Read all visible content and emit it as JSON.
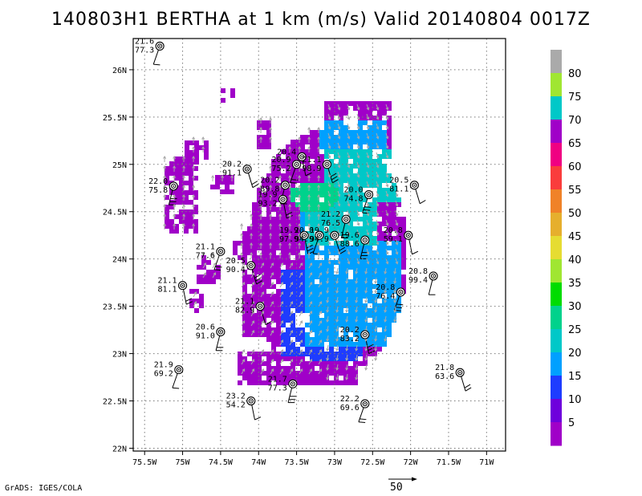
{
  "title": "140803H1 BERTHA at 1 km (m/s) Valid 20140804 0017Z",
  "credit": "GrADS: IGES/COLA",
  "reference_vector_label": "50",
  "chart_data": {
    "type": "heatmap",
    "title": "140803H1 BERTHA at 1 km (m/s) Valid 20140804 0017Z",
    "xlabel": "",
    "ylabel": "",
    "xlim": [
      -75.65,
      -70.75
    ],
    "ylim": [
      21.97,
      26.33
    ],
    "grid": true,
    "x_ticks": [
      {
        "value": -75.5,
        "label": "75.5W"
      },
      {
        "value": -75,
        "label": "75W"
      },
      {
        "value": -74.5,
        "label": "74.5W"
      },
      {
        "value": -74,
        "label": "74W"
      },
      {
        "value": -73.5,
        "label": "73.5W"
      },
      {
        "value": -73,
        "label": "73W"
      },
      {
        "value": -72.5,
        "label": "72.5W"
      },
      {
        "value": -72,
        "label": "72W"
      },
      {
        "value": -71.5,
        "label": "71.5W"
      },
      {
        "value": -71,
        "label": "71W"
      }
    ],
    "y_ticks": [
      {
        "value": 22,
        "label": "22N"
      },
      {
        "value": 22.5,
        "label": "22.5N"
      },
      {
        "value": 23,
        "label": "23N"
      },
      {
        "value": 23.5,
        "label": "23.5N"
      },
      {
        "value": 24,
        "label": "24N"
      },
      {
        "value": 24.5,
        "label": "24.5N"
      },
      {
        "value": 25,
        "label": "25N"
      },
      {
        "value": 25.5,
        "label": "25.5N"
      },
      {
        "value": 26,
        "label": "26N"
      }
    ],
    "colorbar": {
      "labels": [
        "5",
        "10",
        "15",
        "20",
        "25",
        "30",
        "35",
        "40",
        "45",
        "50",
        "55",
        "60",
        "65",
        "70",
        "75",
        "80"
      ],
      "colors": [
        "#a000c8",
        "#6e00dc",
        "#1e3cff",
        "#00a0ff",
        "#00c8c8",
        "#00d28c",
        "#00dc00",
        "#a0e632",
        "#e6dc32",
        "#e6af2d",
        "#f08228",
        "#fa3c3c",
        "#f00082",
        "#a000c8",
        "#00c8c8",
        "#a0e632",
        "#aaaaaa"
      ]
    },
    "observations": [
      {
        "lon": -75.3,
        "lat": 26.25,
        "temp": "21.6",
        "rh": "77.3"
      },
      {
        "lon": -74.15,
        "lat": 24.95,
        "temp": "20.2",
        "rh": "91.1"
      },
      {
        "lon": -75.12,
        "lat": 24.77,
        "temp": "22.0",
        "rh": "75.8"
      },
      {
        "lon": -73.43,
        "lat": 25.08,
        "temp": "20.4",
        "rh": ""
      },
      {
        "lon": -73.5,
        "lat": 25.0,
        "temp": "20.9",
        "rh": "75.2"
      },
      {
        "lon": -73.1,
        "lat": 25.0,
        "temp": "21.1",
        "rh": "98.9"
      },
      {
        "lon": -73.65,
        "lat": 24.78,
        "temp": "20.2",
        "rh": "89.8"
      },
      {
        "lon": -73.68,
        "lat": 24.63,
        "temp": "19.9",
        "rh": "93.2"
      },
      {
        "lon": -72.55,
        "lat": 24.68,
        "temp": "20.0",
        "rh": "74.8"
      },
      {
        "lon": -71.95,
        "lat": 24.78,
        "temp": "20.5",
        "rh": "81.1"
      },
      {
        "lon": -72.85,
        "lat": 24.42,
        "temp": "21.2",
        "rh": "76.5"
      },
      {
        "lon": -73.4,
        "lat": 24.25,
        "temp": "19.9",
        "rh": "97.9"
      },
      {
        "lon": -73.2,
        "lat": 24.25,
        "temp": "20.0",
        "rh": "94.9"
      },
      {
        "lon": -73.0,
        "lat": 24.25,
        "temp": "19.9",
        "rh": "94.9"
      },
      {
        "lon": -72.6,
        "lat": 24.2,
        "temp": "19.6",
        "rh": "88.6"
      },
      {
        "lon": -72.03,
        "lat": 24.25,
        "temp": "20.8",
        "rh": "59.1"
      },
      {
        "lon": -74.5,
        "lat": 24.08,
        "temp": "21.1",
        "rh": "77.6"
      },
      {
        "lon": -74.1,
        "lat": 23.93,
        "temp": "20.5",
        "rh": "90.4"
      },
      {
        "lon": -71.7,
        "lat": 23.82,
        "temp": "20.8",
        "rh": "99.4"
      },
      {
        "lon": -75.0,
        "lat": 23.72,
        "temp": "21.1",
        "rh": "81.1"
      },
      {
        "lon": -72.13,
        "lat": 23.65,
        "temp": "20.8",
        "rh": "76.4"
      },
      {
        "lon": -73.98,
        "lat": 23.5,
        "temp": "21.1",
        "rh": "82.9"
      },
      {
        "lon": -74.5,
        "lat": 23.23,
        "temp": "20.6",
        "rh": "91.0"
      },
      {
        "lon": -72.6,
        "lat": 23.2,
        "temp": "20.2",
        "rh": "83.2"
      },
      {
        "lon": -75.05,
        "lat": 22.83,
        "temp": "21.9",
        "rh": "69.2"
      },
      {
        "lon": -71.35,
        "lat": 22.8,
        "temp": "21.8",
        "rh": "63.6"
      },
      {
        "lon": -73.55,
        "lat": 22.68,
        "temp": "21.7",
        "rh": "77.3"
      },
      {
        "lon": -74.1,
        "lat": 22.5,
        "temp": "23.2",
        "rh": "54.2"
      },
      {
        "lon": -72.6,
        "lat": 22.47,
        "temp": "22.2",
        "rh": "69.6"
      }
    ]
  }
}
